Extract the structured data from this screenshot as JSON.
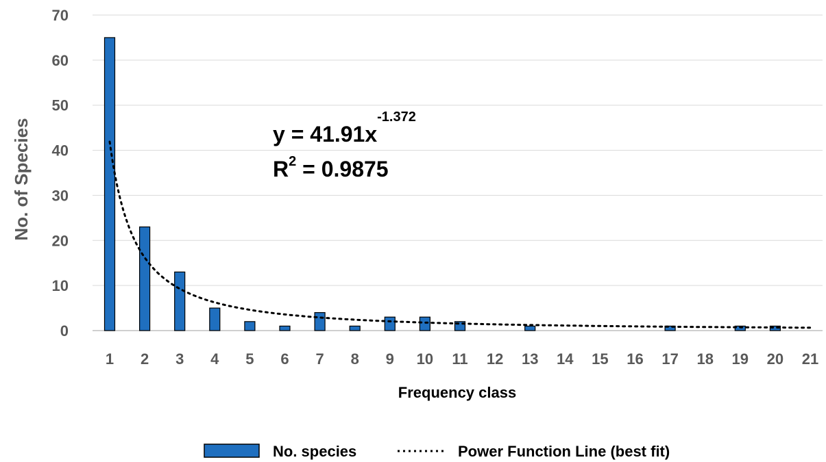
{
  "chart_data": {
    "type": "bar",
    "xlabel": "Frequency class",
    "ylabel": "No. of Species",
    "ylim": [
      0,
      70
    ],
    "yticks": [
      0,
      10,
      20,
      30,
      40,
      50,
      60,
      70
    ],
    "categories": [
      "1",
      "2",
      "3",
      "4",
      "5",
      "6",
      "7",
      "8",
      "9",
      "10",
      "11",
      "12",
      "13",
      "14",
      "15",
      "16",
      "17",
      "18",
      "19",
      "20",
      "21"
    ],
    "series": [
      {
        "name": "No. species",
        "type": "bar",
        "color": "#1f6fbf",
        "values": [
          65,
          23,
          13,
          5,
          2,
          1,
          4,
          1,
          3,
          3,
          2,
          0,
          1,
          0,
          0,
          0,
          1,
          0,
          1,
          1,
          0
        ]
      },
      {
        "name": "Power Function Line (best fit)",
        "type": "line",
        "style": "dotted",
        "color": "#000000",
        "coefficient": 41.91,
        "exponent": -1.372
      }
    ],
    "annotation": {
      "equation_prefix": "y = 41.91x",
      "equation_exponent": "-1.372",
      "r2_prefix": "R",
      "r2_sup": "2",
      "r2_suffix": " = 0.9875"
    },
    "grid": true,
    "legend": "bottom"
  }
}
